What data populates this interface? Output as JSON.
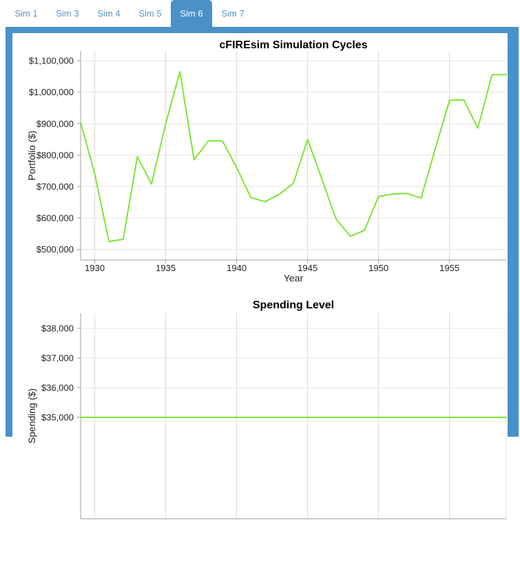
{
  "tabs": {
    "items": [
      {
        "label": "Sim 1",
        "active": false
      },
      {
        "label": "Sim 3",
        "active": false
      },
      {
        "label": "Sim 4",
        "active": false
      },
      {
        "label": "Sim 5",
        "active": false
      },
      {
        "label": "Sim 6",
        "active": true
      },
      {
        "label": "Sim 7",
        "active": false
      }
    ]
  },
  "colors": {
    "accent_blue": "#4a90c9",
    "tab_link_blue": "#5b93c3",
    "line_green": "#7de435",
    "h_gridline": "#e3e3e3",
    "v_gridline": "#d9d9d9",
    "axis_gray": "#9e9e9e"
  },
  "chart_data": [
    {
      "type": "line",
      "title": "cFIREsim Simulation Cycles",
      "xlabel": "Year",
      "ylabel": "Portfolio ($)",
      "grid": true,
      "legend": "none",
      "xlim": [
        1929,
        1959
      ],
      "ylim": [
        466000,
        1131000
      ],
      "xticks": [
        1930,
        1935,
        1940,
        1945,
        1950,
        1955
      ],
      "yticks": [
        {
          "v": 500000,
          "label": "$500,000"
        },
        {
          "v": 600000,
          "label": "$600,000"
        },
        {
          "v": 700000,
          "label": "$700,000"
        },
        {
          "v": 800000,
          "label": "$800,000"
        },
        {
          "v": 900000,
          "label": "$900,000"
        },
        {
          "v": 1000000,
          "label": "$1,000,000"
        },
        {
          "v": 1100000,
          "label": "$1,100,000"
        }
      ],
      "x": [
        1929,
        1930,
        1931,
        1932,
        1933,
        1934,
        1935,
        1936,
        1937,
        1938,
        1939,
        1940,
        1941,
        1942,
        1943,
        1944,
        1945,
        1946,
        1947,
        1948,
        1949,
        1950,
        1951,
        1952,
        1953,
        1954,
        1955,
        1956,
        1957,
        1958,
        1959
      ],
      "values": [
        905000,
        740000,
        525000,
        532000,
        795000,
        708000,
        900000,
        1065000,
        785000,
        845000,
        845000,
        760000,
        665000,
        652000,
        675000,
        710000,
        850000,
        725000,
        597000,
        542000,
        560000,
        668000,
        676000,
        678000,
        663000,
        820000,
        974000,
        976000,
        886000,
        1056000,
        1056000
      ]
    },
    {
      "type": "line",
      "title": "Spending Level",
      "xlabel": "",
      "ylabel": "Spending ($)",
      "grid": true,
      "legend": "none",
      "xlim": [
        1929,
        1959
      ],
      "ylim": [
        31580,
        38512
      ],
      "xticks": [
        1930,
        1935,
        1940,
        1945,
        1950,
        1955
      ],
      "yticks": [
        {
          "v": 35000,
          "label": "$35,000"
        },
        {
          "v": 36000,
          "label": "$36,000"
        },
        {
          "v": 37000,
          "label": "$37,000"
        },
        {
          "v": 38000,
          "label": "$38,000"
        }
      ],
      "x": [
        1929,
        1930,
        1931,
        1932,
        1933,
        1934,
        1935,
        1936,
        1937,
        1938,
        1939,
        1940,
        1941,
        1942,
        1943,
        1944,
        1945,
        1946,
        1947,
        1948,
        1949,
        1950,
        1951,
        1952,
        1953,
        1954,
        1955,
        1956,
        1957,
        1958,
        1959
      ],
      "values": [
        35000,
        35000,
        35000,
        35000,
        35000,
        35000,
        35000,
        35000,
        35000,
        35000,
        35000,
        35000,
        35000,
        35000,
        35000,
        35000,
        35000,
        35000,
        35000,
        35000,
        35000,
        35000,
        35000,
        35000,
        35000,
        35000,
        35000,
        35000,
        35000,
        35000,
        35000
      ]
    }
  ]
}
